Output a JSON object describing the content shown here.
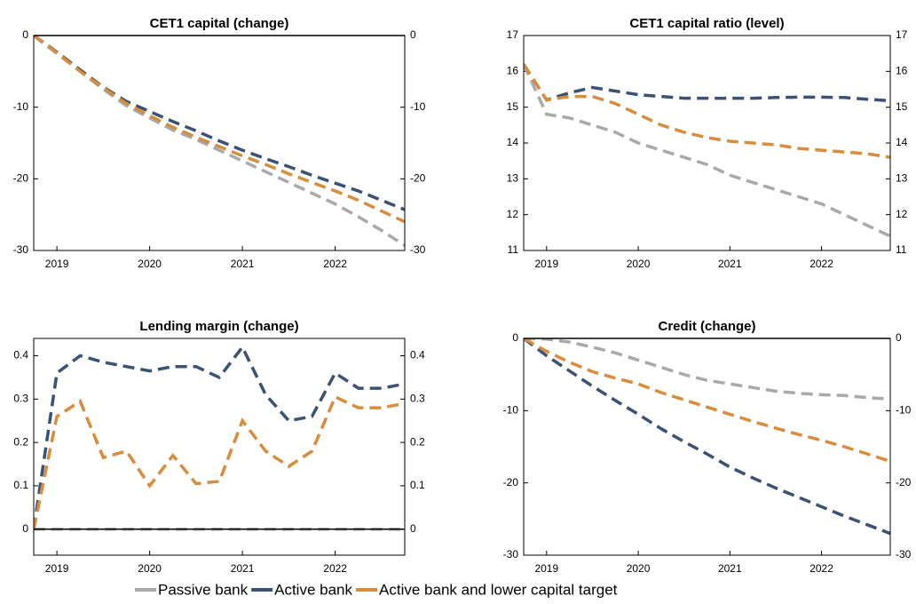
{
  "chart_data": [
    {
      "type": "line",
      "title": "CET1 capital (change)",
      "x": [
        2018.75,
        2019,
        2019.25,
        2019.5,
        2019.75,
        2020,
        2020.25,
        2020.5,
        2020.75,
        2021,
        2021.25,
        2021.5,
        2021.75,
        2022,
        2022.25,
        2022.5,
        2022.75
      ],
      "xlim": [
        2018.75,
        2022.75
      ],
      "xticks": [
        2019,
        2020,
        2021,
        2022
      ],
      "ylim": [
        -30,
        0
      ],
      "yticks": [
        -30,
        -20,
        -10,
        0
      ],
      "y2lim": [
        -30,
        0
      ],
      "y2ticks": [
        -30,
        -20,
        -10,
        0
      ],
      "series": [
        {
          "values": [
            0,
            -2.5,
            -5,
            -7.5,
            -9.8,
            -11.5,
            -13.2,
            -14.5,
            -16,
            -17.5,
            -19,
            -20.5,
            -22,
            -23.5,
            -25.3,
            -27.2,
            -29.3
          ]
        },
        {
          "values": [
            0,
            -2.3,
            -4.8,
            -7.2,
            -9.2,
            -10.6,
            -12,
            -13.3,
            -14.7,
            -16,
            -17.2,
            -18.3,
            -19.5,
            -20.6,
            -21.7,
            -23,
            -24.3
          ]
        },
        {
          "values": [
            0,
            -2.4,
            -5,
            -7.3,
            -9.5,
            -11.2,
            -12.8,
            -14.2,
            -15.5,
            -16.8,
            -18,
            -19.3,
            -20.5,
            -21.7,
            -23,
            -24.5,
            -26
          ]
        }
      ]
    },
    {
      "type": "line",
      "title": "CET1 capital ratio (level)",
      "x": [
        2018.75,
        2019,
        2019.25,
        2019.5,
        2019.75,
        2020,
        2020.25,
        2020.5,
        2020.75,
        2021,
        2021.25,
        2021.5,
        2021.75,
        2022,
        2022.25,
        2022.5,
        2022.75
      ],
      "xlim": [
        2018.75,
        2022.75
      ],
      "xticks": [
        2019,
        2020,
        2021,
        2022
      ],
      "ylim": [
        11,
        17
      ],
      "yticks": [
        11,
        12,
        13,
        14,
        15,
        16,
        17
      ],
      "y2lim": [
        11,
        17
      ],
      "y2ticks": [
        11,
        12,
        13,
        14,
        15,
        16,
        17
      ],
      "series": [
        {
          "values": [
            16.2,
            14.8,
            14.7,
            14.5,
            14.3,
            14.0,
            13.8,
            13.6,
            13.4,
            13.1,
            12.9,
            12.7,
            12.5,
            12.3,
            12.0,
            11.7,
            11.4
          ]
        },
        {
          "values": [
            16.2,
            15.2,
            15.4,
            15.55,
            15.45,
            15.35,
            15.3,
            15.25,
            15.25,
            15.25,
            15.25,
            15.27,
            15.28,
            15.28,
            15.27,
            15.22,
            15.18
          ]
        },
        {
          "values": [
            16.2,
            15.2,
            15.3,
            15.3,
            15.1,
            14.8,
            14.5,
            14.3,
            14.15,
            14.05,
            14.0,
            13.95,
            13.85,
            13.8,
            13.75,
            13.7,
            13.6
          ]
        }
      ]
    },
    {
      "type": "line",
      "title": "Lending margin (change)",
      "x": [
        2018.75,
        2019,
        2019.25,
        2019.5,
        2019.75,
        2020,
        2020.25,
        2020.5,
        2020.75,
        2021,
        2021.25,
        2021.5,
        2021.75,
        2022,
        2022.25,
        2022.5,
        2022.75
      ],
      "xlim": [
        2018.75,
        2022.75
      ],
      "xticks": [
        2019,
        2020,
        2021,
        2022
      ],
      "ylim": [
        -0.06,
        0.44
      ],
      "yticks": [
        0,
        0.1,
        0.2,
        0.3,
        0.4
      ],
      "y2lim": [
        -0.06,
        0.44
      ],
      "y2ticks": [
        0,
        0.1,
        0.2,
        0.3,
        0.4
      ],
      "series": [
        {
          "values": [
            0,
            0,
            0,
            0,
            0,
            0,
            0,
            0,
            0,
            0,
            0,
            0,
            0,
            0,
            0,
            0,
            0
          ]
        },
        {
          "values": [
            0,
            0.36,
            0.4,
            0.385,
            0.375,
            0.365,
            0.375,
            0.375,
            0.35,
            0.42,
            0.31,
            0.25,
            0.26,
            0.36,
            0.325,
            0.325,
            0.335
          ]
        },
        {
          "values": [
            0,
            0.26,
            0.295,
            0.165,
            0.18,
            0.1,
            0.17,
            0.105,
            0.11,
            0.25,
            0.18,
            0.145,
            0.18,
            0.305,
            0.28,
            0.28,
            0.29
          ]
        }
      ]
    },
    {
      "type": "line",
      "title": "Credit (change)",
      "x": [
        2018.75,
        2019,
        2019.25,
        2019.5,
        2019.75,
        2020,
        2020.25,
        2020.5,
        2020.75,
        2021,
        2021.25,
        2021.5,
        2021.75,
        2022,
        2022.25,
        2022.5,
        2022.75
      ],
      "xlim": [
        2018.75,
        2022.75
      ],
      "xticks": [
        2019,
        2020,
        2021,
        2022
      ],
      "ylim": [
        -30,
        0
      ],
      "yticks": [
        -30,
        -20,
        -10,
        0
      ],
      "y2lim": [
        -30,
        0
      ],
      "y2ticks": [
        -30,
        -20,
        -10,
        0
      ],
      "series": [
        {
          "values": [
            0,
            -0.1,
            -0.5,
            -1.2,
            -2.0,
            -3.0,
            -4.0,
            -5.0,
            -5.8,
            -6.3,
            -6.8,
            -7.3,
            -7.6,
            -7.8,
            -7.9,
            -8.2,
            -8.4
          ]
        },
        {
          "values": [
            0,
            -2.4,
            -4.5,
            -6.6,
            -8.6,
            -10.5,
            -12.5,
            -14.3,
            -16,
            -17.8,
            -19.3,
            -20.7,
            -22,
            -23.3,
            -24.6,
            -25.8,
            -27
          ]
        },
        {
          "values": [
            0,
            -1.8,
            -3.3,
            -4.6,
            -5.5,
            -6.3,
            -7.5,
            -8.5,
            -9.5,
            -10.5,
            -11.5,
            -12.4,
            -13.3,
            -14.1,
            -15,
            -16,
            -17
          ]
        }
      ]
    }
  ],
  "legend": {
    "position": "bottom",
    "entries": [
      {
        "name": "Passive bank",
        "color": "#a7a9ac"
      },
      {
        "name": "Active bank",
        "color": "#3b5274"
      },
      {
        "name": "Active bank and lower capital target",
        "color": "#d98c3c"
      }
    ]
  }
}
